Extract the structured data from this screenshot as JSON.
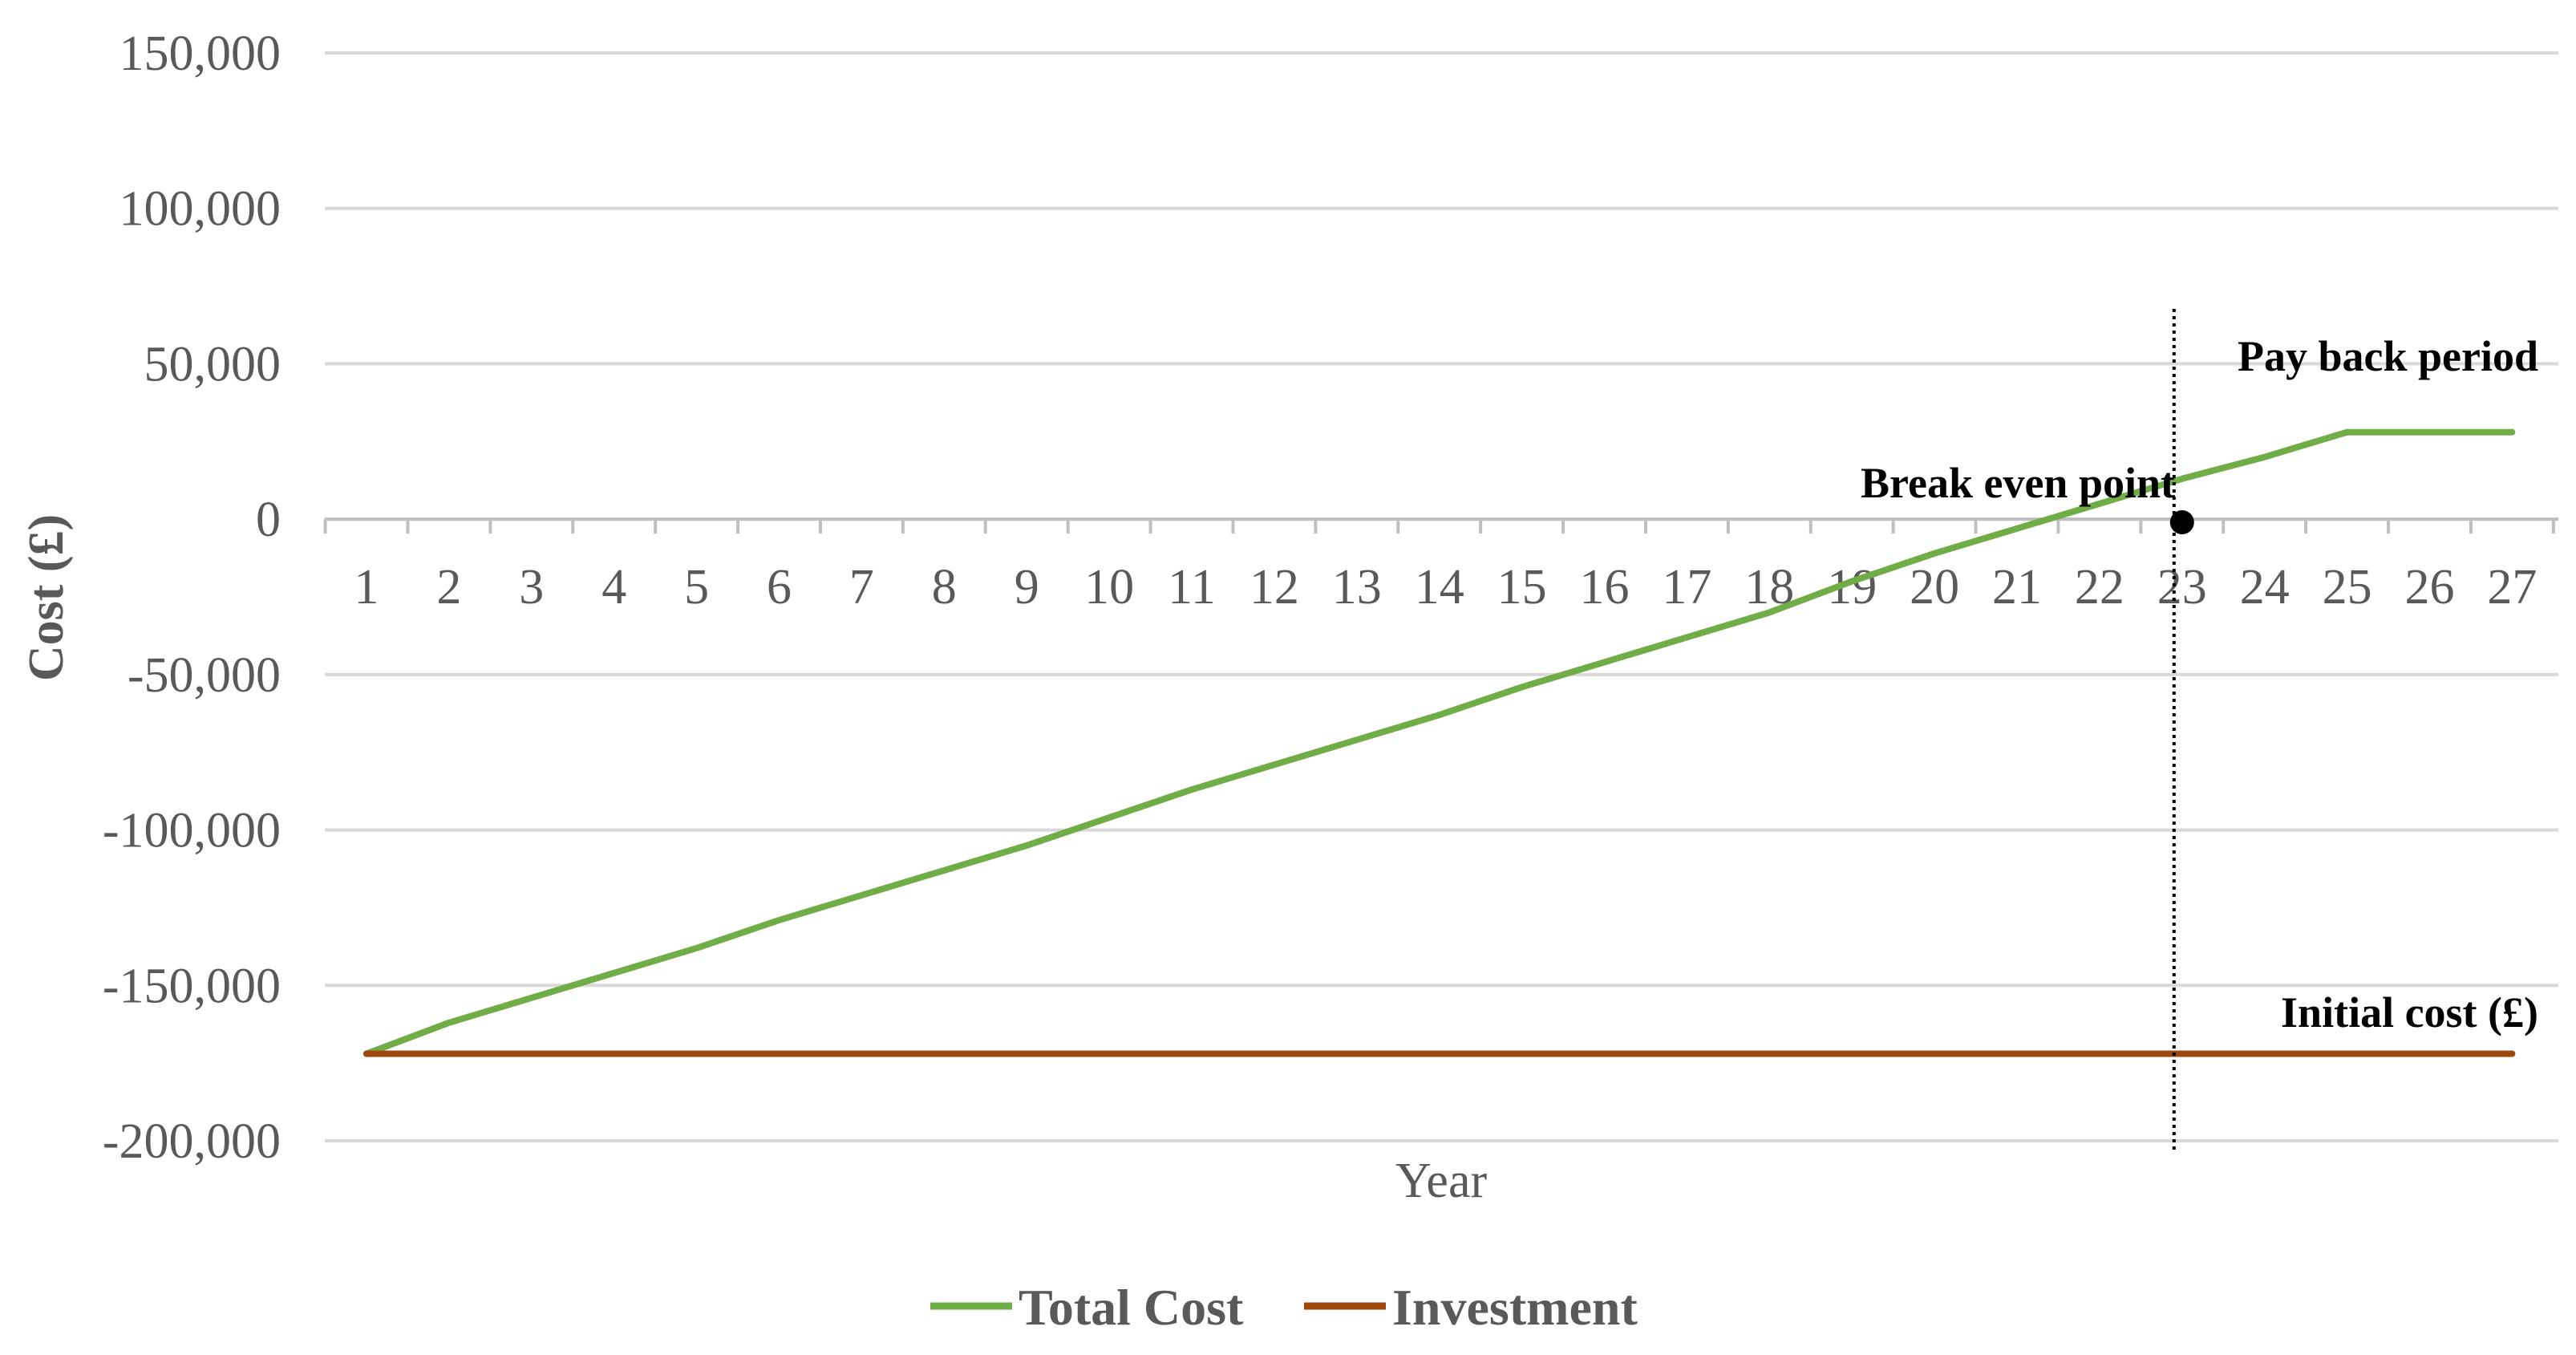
{
  "chart_data": {
    "type": "line",
    "xlabel": "Year",
    "ylabel": "Cost (£)",
    "x": [
      1,
      2,
      3,
      4,
      5,
      6,
      7,
      8,
      9,
      10,
      11,
      12,
      13,
      14,
      15,
      16,
      17,
      18,
      19,
      20,
      21,
      22,
      23,
      24,
      25,
      26,
      27
    ],
    "ylim": [
      -200000,
      150000
    ],
    "yticks": [
      150000,
      100000,
      50000,
      0,
      -50000,
      -100000,
      -150000,
      -200000
    ],
    "ytick_labels": [
      "150,000",
      "100,000",
      "50,000",
      "0",
      "-50,000",
      "-100,000",
      "-150,000",
      "-200,000"
    ],
    "grid": true,
    "legend_position": "bottom",
    "series": [
      {
        "name": "Total Cost",
        "color": "#70AD47",
        "values": [
          -172000,
          -162000,
          -154000,
          -146000,
          -138000,
          -129000,
          -121000,
          -113000,
          -105000,
          -96000,
          -87000,
          -79000,
          -71000,
          -63000,
          -54000,
          -46000,
          -38000,
          -30000,
          -20000,
          -11000,
          -3000,
          5000,
          13000,
          20000,
          28000,
          28000,
          28000
        ]
      },
      {
        "name": "Investment",
        "color": "#9E480E",
        "values": [
          -172000,
          -172000,
          -172000,
          -172000,
          -172000,
          -172000,
          -172000,
          -172000,
          -172000,
          -172000,
          -172000,
          -172000,
          -172000,
          -172000,
          -172000,
          -172000,
          -172000,
          -172000,
          -172000,
          -172000,
          -172000,
          -172000,
          -172000,
          -172000,
          -172000,
          -172000,
          -172000
        ]
      }
    ],
    "annotations": {
      "payback_label": "Pay back period",
      "break_even_label": "Break even point",
      "initial_cost_label": "Initial cost (£)",
      "break_even_x": 23,
      "break_even_y": -1000
    }
  }
}
